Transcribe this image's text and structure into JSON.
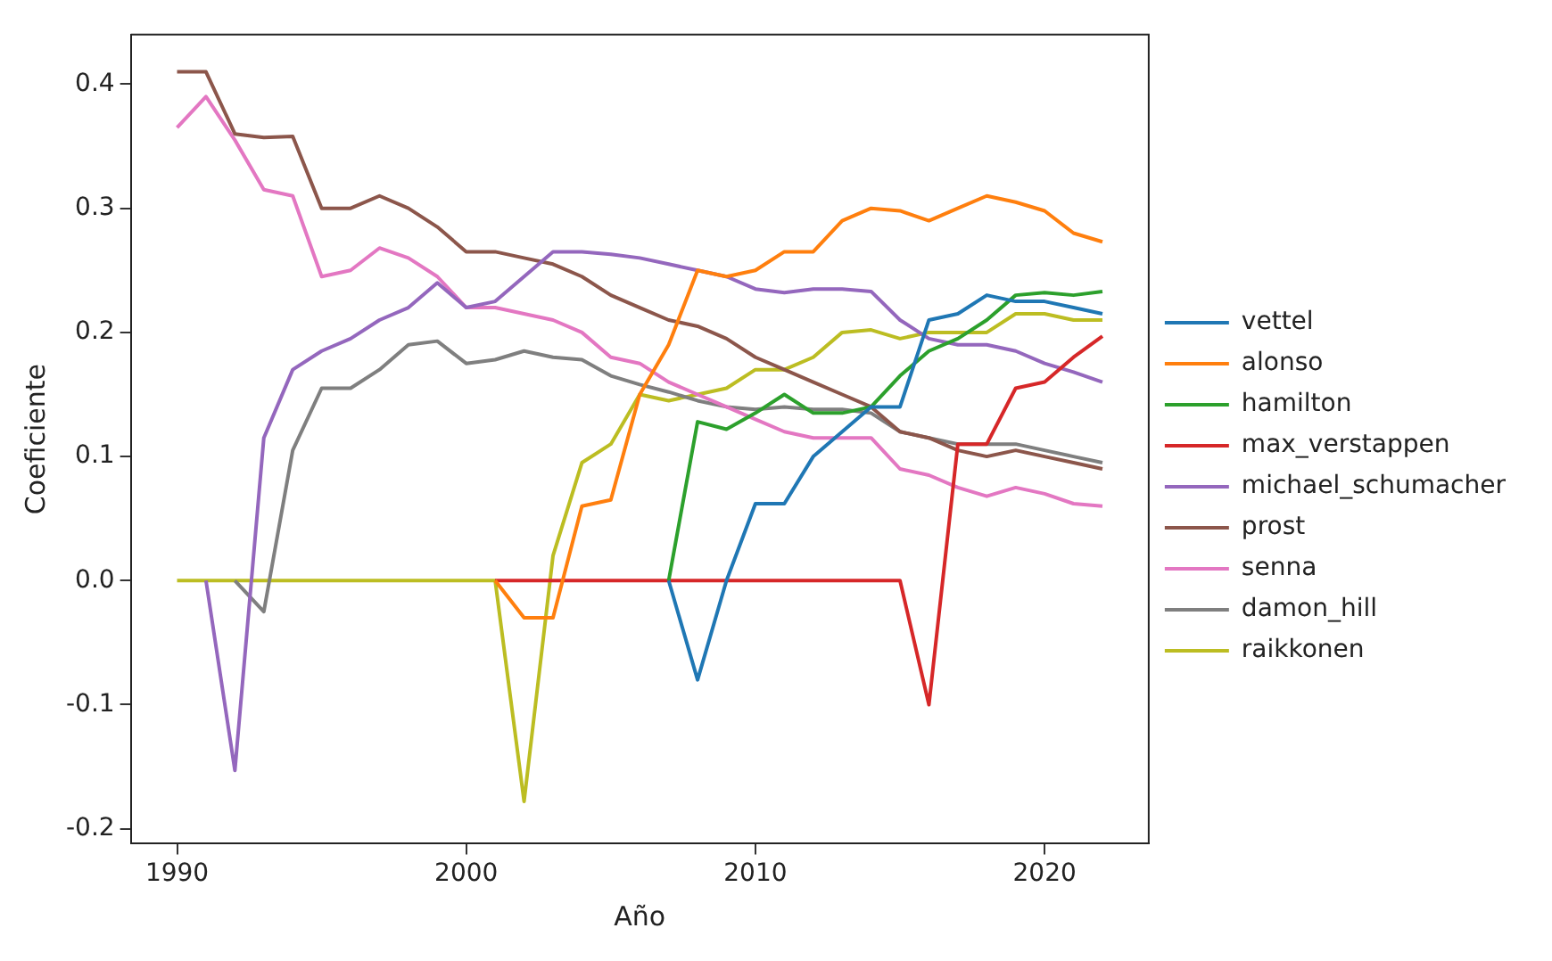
{
  "chart_data": {
    "type": "line",
    "xlabel": "Año",
    "ylabel": "Coeficiente",
    "x": [
      1990,
      1991,
      1992,
      1993,
      1994,
      1995,
      1996,
      1997,
      1998,
      1999,
      2000,
      2001,
      2002,
      2003,
      2004,
      2005,
      2006,
      2007,
      2008,
      2009,
      2010,
      2011,
      2012,
      2013,
      2014,
      2015,
      2016,
      2017,
      2018,
      2019,
      2020,
      2021,
      2022
    ],
    "xlim": [
      1988.4,
      2023.6
    ],
    "xticks": [
      1990,
      2000,
      2010,
      2020
    ],
    "ylim": [
      -0.212,
      0.44
    ],
    "yticks": [
      -0.2,
      -0.1,
      {
        "value": 0,
        "label": "0.0"
      },
      0.1,
      0.2,
      0.3,
      0.4
    ],
    "grid": false,
    "legend": "right",
    "marker": "none",
    "series": [
      {
        "name": "vettel",
        "color": "#1f77b4",
        "values": [
          null,
          null,
          null,
          null,
          null,
          null,
          null,
          null,
          null,
          null,
          null,
          null,
          null,
          null,
          null,
          null,
          null,
          0,
          -0.08,
          0.0,
          0.062,
          0.062,
          0.1,
          0.12,
          0.14,
          0.14,
          0.21,
          0.215,
          0.23,
          0.225,
          0.225,
          0.22,
          0.215
        ]
      },
      {
        "name": "alonso",
        "color": "#ff7f0e",
        "values": [
          null,
          null,
          null,
          null,
          null,
          null,
          null,
          null,
          null,
          null,
          null,
          0,
          -0.03,
          -0.03,
          0.06,
          0.065,
          0.15,
          0.19,
          0.25,
          0.245,
          0.25,
          0.265,
          0.265,
          0.29,
          0.3,
          0.298,
          0.29,
          0.3,
          0.31,
          0.305,
          0.298,
          0.28,
          0.273
        ]
      },
      {
        "name": "hamilton",
        "color": "#2ca02c",
        "values": [
          null,
          null,
          null,
          null,
          null,
          null,
          null,
          null,
          null,
          null,
          null,
          null,
          null,
          null,
          null,
          null,
          null,
          0,
          0.128,
          0.122,
          0.135,
          0.15,
          0.135,
          0.135,
          0.14,
          0.165,
          0.185,
          0.195,
          0.21,
          0.23,
          0.232,
          0.23,
          0.233
        ]
      },
      {
        "name": "max_verstappen",
        "color": "#d62728",
        "values": [
          null,
          null,
          null,
          null,
          null,
          null,
          null,
          null,
          null,
          null,
          null,
          0,
          0,
          0,
          0,
          0,
          0,
          0,
          0,
          0,
          0,
          0,
          0,
          0,
          0,
          0,
          -0.1,
          0.11,
          0.11,
          0.155,
          0.16,
          0.18,
          0.197
        ]
      },
      {
        "name": "michael_schumacher",
        "color": "#9467bd",
        "values": [
          null,
          0,
          -0.153,
          0.115,
          0.17,
          0.185,
          0.195,
          0.21,
          0.22,
          0.24,
          0.22,
          0.225,
          0.245,
          0.265,
          0.265,
          0.263,
          0.26,
          0.255,
          0.25,
          0.245,
          0.235,
          0.232,
          0.235,
          0.235,
          0.233,
          0.21,
          0.195,
          0.19,
          0.19,
          0.185,
          0.175,
          0.168,
          0.16
        ]
      },
      {
        "name": "prost",
        "color": "#8c564b",
        "values": [
          0.41,
          0.41,
          0.36,
          0.357,
          0.358,
          0.3,
          0.3,
          0.31,
          0.3,
          0.285,
          0.265,
          0.265,
          0.26,
          0.255,
          0.245,
          0.23,
          0.22,
          0.21,
          0.205,
          0.195,
          0.18,
          0.17,
          0.16,
          0.15,
          0.14,
          0.12,
          0.115,
          0.105,
          0.1,
          0.105,
          0.1,
          0.095,
          0.09
        ]
      },
      {
        "name": "senna",
        "color": "#e377c2",
        "values": [
          0.365,
          0.39,
          0.355,
          0.315,
          0.31,
          0.245,
          0.25,
          0.268,
          0.26,
          0.245,
          0.22,
          0.22,
          0.215,
          0.21,
          0.2,
          0.18,
          0.175,
          0.16,
          0.15,
          0.14,
          0.13,
          0.12,
          0.115,
          0.115,
          0.115,
          0.09,
          0.085,
          0.075,
          0.068,
          0.075,
          0.07,
          0.062,
          0.06
        ]
      },
      {
        "name": "damon_hill",
        "color": "#7f7f7f",
        "values": [
          null,
          null,
          0,
          -0.025,
          0.105,
          0.155,
          0.155,
          0.17,
          0.19,
          0.193,
          0.175,
          0.178,
          0.185,
          0.18,
          0.178,
          0.165,
          0.158,
          0.152,
          0.145,
          0.14,
          0.138,
          0.14,
          0.138,
          0.138,
          0.135,
          0.12,
          0.115,
          0.11,
          0.11,
          0.11,
          0.105,
          0.1,
          0.095
        ]
      },
      {
        "name": "raikkonen",
        "color": "#bcbd22",
        "values": [
          0,
          0,
          0,
          0,
          0,
          0,
          0,
          0,
          0,
          0,
          0,
          0,
          -0.178,
          0.02,
          0.095,
          0.11,
          0.15,
          0.145,
          0.15,
          0.155,
          0.17,
          0.17,
          0.18,
          0.2,
          0.202,
          0.195,
          0.2,
          0.2,
          0.2,
          0.215,
          0.215,
          0.21,
          0.21
        ]
      }
    ]
  }
}
